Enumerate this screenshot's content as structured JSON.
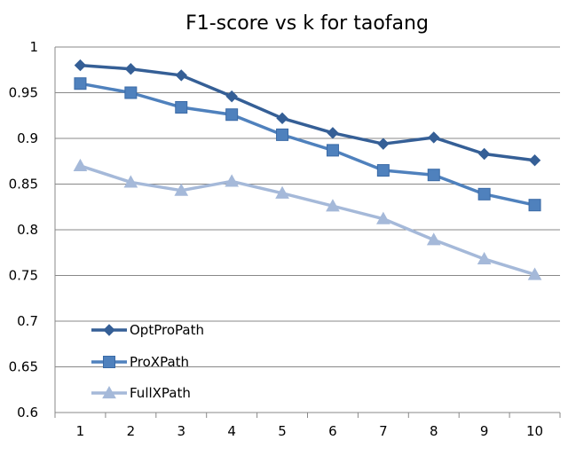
{
  "chart_data": {
    "type": "line",
    "title": "F1-score vs k for taofang",
    "xlabel": "",
    "ylabel": "",
    "categories": [
      "1",
      "2",
      "3",
      "4",
      "5",
      "6",
      "7",
      "8",
      "9",
      "10"
    ],
    "ylim": [
      0.6,
      1.0
    ],
    "y_ticks": [
      "0.6",
      "0.65",
      "0.7",
      "0.75",
      "0.8",
      "0.85",
      "0.9",
      "0.95",
      "1"
    ],
    "grid": "horizontal",
    "legend_position": "bottom-left inside plot",
    "series": [
      {
        "name": "OptProPath",
        "marker": "diamond",
        "color": "#355F96",
        "values": [
          0.98,
          0.976,
          0.969,
          0.946,
          0.922,
          0.906,
          0.894,
          0.901,
          0.883,
          0.876
        ]
      },
      {
        "name": "ProXPath",
        "marker": "square",
        "color": "#4F81BD",
        "values": [
          0.96,
          0.95,
          0.934,
          0.926,
          0.904,
          0.887,
          0.865,
          0.86,
          0.839,
          0.827
        ]
      },
      {
        "name": "FullXPath",
        "marker": "triangle",
        "color": "#A5B9D9",
        "values": [
          0.87,
          0.852,
          0.843,
          0.853,
          0.84,
          0.826,
          0.812,
          0.789,
          0.768,
          0.751
        ]
      }
    ]
  }
}
